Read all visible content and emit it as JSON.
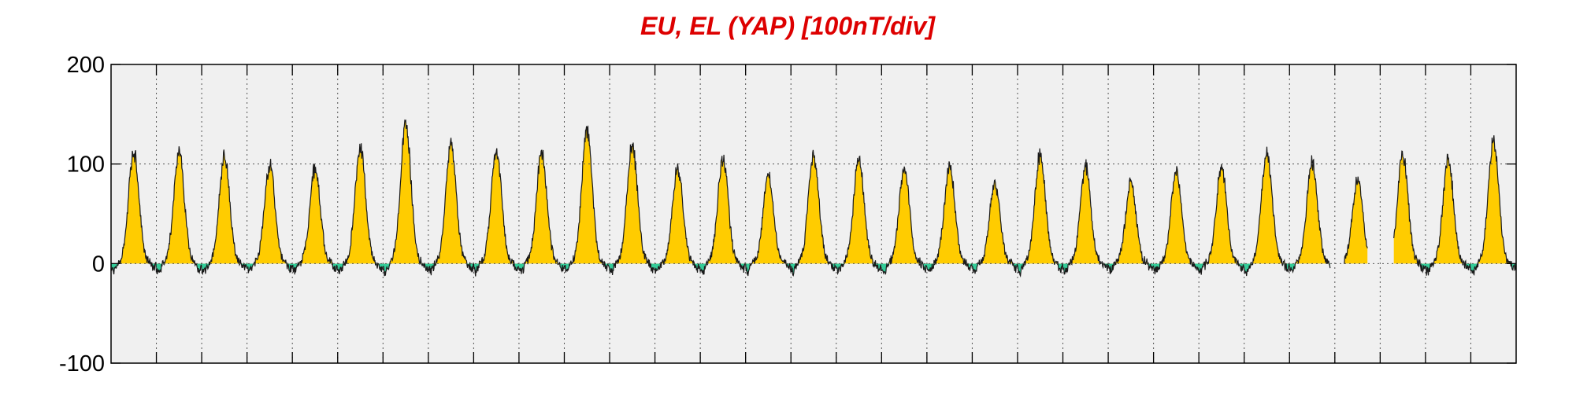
{
  "chart_data": {
    "type": "area",
    "title": "EU, EL (YAP)  [100nT/div]",
    "xlabel": "",
    "ylabel": "",
    "ylim": [
      -100,
      200
    ],
    "yticks": [
      200,
      100,
      0,
      -100
    ],
    "ytick_labels": [
      "200",
      "100",
      "0",
      "-100"
    ],
    "xlim": [
      0,
      31
    ],
    "x_tick_count": 31,
    "x_tick_labels": [],
    "grid": true,
    "legend": "none",
    "days": 31,
    "missing_data_ranges": [
      [
        26.9,
        27.2
      ],
      [
        27.72,
        28.3
      ]
    ],
    "series": [
      {
        "label": "EU",
        "daily_peak_values": [
          112,
          112,
          108,
          98,
          95,
          118,
          140,
          121,
          114,
          110,
          133,
          120,
          95,
          105,
          88,
          109,
          107,
          96,
          98,
          80,
          110,
          97,
          80,
          93,
          98,
          113,
          103,
          85,
          110,
          105,
          123
        ]
      },
      {
        "label": "EL",
        "typical_min_value": -10
      }
    ],
    "colors": {
      "eu_fill": "#ffcc00",
      "el_fill": "#33cc99",
      "line": "#1a1a1a",
      "plot_background": "#f0f0f0",
      "title": "#dd0000",
      "grid": "#555555"
    }
  }
}
